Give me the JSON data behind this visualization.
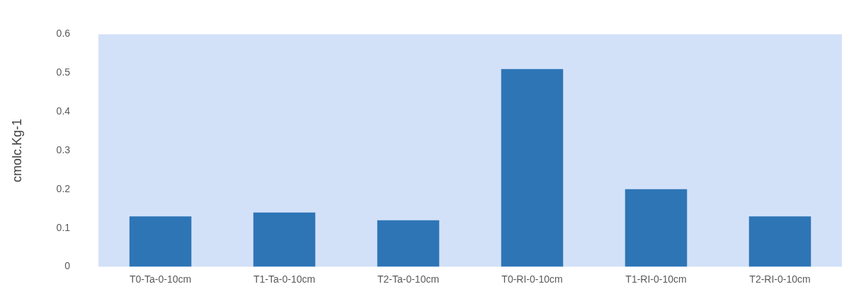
{
  "chart_data": {
    "type": "bar",
    "ylabel": "cmolc.Kg-1",
    "categories": [
      "T0-Ta-0-10cm",
      "T1-Ta-0-10cm",
      "T2-Ta-0-10cm",
      "T0-RI-0-10cm",
      "T1-RI-0-10cm",
      "T2-RI-0-10cm"
    ],
    "values": [
      0.13,
      0.14,
      0.12,
      0.51,
      0.2,
      0.13
    ],
    "color": "#2e75b6",
    "ylim": [
      0,
      0.6
    ],
    "yticks": [
      0,
      0.1,
      0.2,
      0.3,
      0.4,
      0.5,
      0.6
    ],
    "grid": false,
    "legend": false
  }
}
